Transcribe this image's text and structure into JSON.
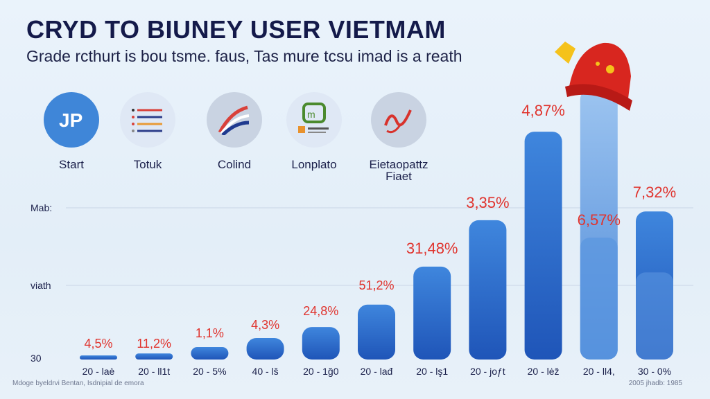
{
  "header": {
    "title": "CRYD TO BIUNEY USER VIETMAM",
    "subtitle": "Grade rcthurt is bou tsme. faus, Tas mure tcsu imad is a reath"
  },
  "icons": [
    {
      "label": "Start",
      "icon": "logo-jp-icon",
      "bg": "#3f86d8"
    },
    {
      "label": "Totuk",
      "icon": "list-icon",
      "bg": "#dfe8f5"
    },
    {
      "label": "Colind",
      "icon": "flag-swoosh-icon",
      "bg": "#c9d3e2"
    },
    {
      "label": "Lonplato",
      "icon": "app-logo-icon",
      "bg": "#dfe8f5"
    },
    {
      "label": "Eietaopattz Fiaet",
      "icon": "dragon-icon",
      "bg": "#c9d3e2"
    }
  ],
  "chart_data": {
    "type": "bar",
    "title": "",
    "y_tick_labels": [
      "Mab:",
      "viath",
      "30"
    ],
    "categories": [
      "20 - laè",
      "20 - ll1t",
      "20 - 5%",
      "40 - lš",
      "20 - 1ğ0",
      "20 - lađ",
      "20 - lş1",
      "20 - joƒt",
      "20 - lėž",
      "20 - ll4,",
      "30 - 0%"
    ],
    "values": [
      1.4,
      2.1,
      4.3,
      7.4,
      11.2,
      18.9,
      32,
      48,
      78.5,
      93,
      51
    ],
    "data_labels": [
      "4,5%",
      "11,2%",
      "1,1%",
      "4,3%",
      "24,8%",
      "51,2%",
      "31,48%",
      "3,35%",
      "4,87%",
      "6,57%",
      "7,32%"
    ],
    "ylim": [
      0,
      100
    ],
    "grid": true,
    "colors": {
      "bar": "#2f6fd1",
      "bar_light": "#7fb0e8",
      "label": "#e0342e"
    }
  },
  "footer": {
    "left": "Mdoge byeldrvi Bentan, Isdnipial de emora",
    "right": "2005 jhadb: 1985"
  },
  "decoration": {
    "icon": "red-hat-icon"
  }
}
